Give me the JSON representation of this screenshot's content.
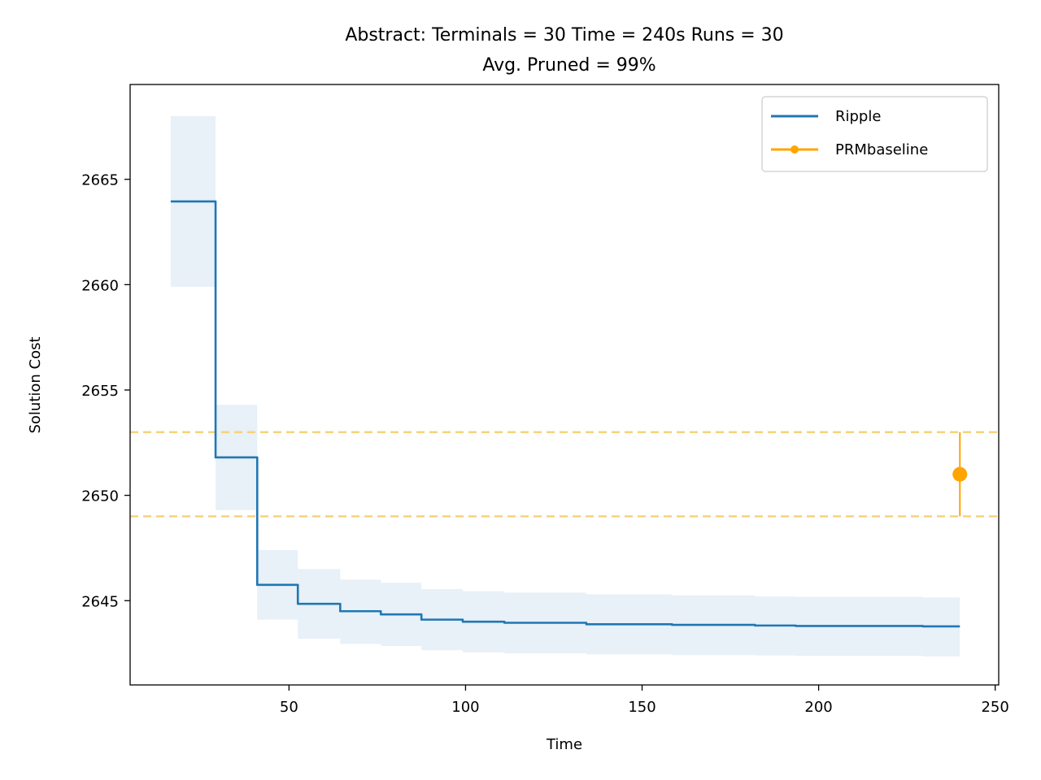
{
  "chart_data": {
    "type": "line",
    "title": "Abstract:  Terminals = 30  Time = 240s  Runs = 30",
    "subtitle": "Avg. Pruned = 99%",
    "xlabel": "Time",
    "ylabel": "Solution Cost",
    "xlim": [
      5,
      251
    ],
    "ylim": [
      2641,
      2669.5
    ],
    "xticks": [
      50,
      100,
      150,
      200,
      250
    ],
    "yticks": [
      2645,
      2650,
      2655,
      2660,
      2665
    ],
    "grid": false,
    "legend_position": "top-right",
    "series": [
      {
        "name": "Ripple",
        "color": "#1f77b4",
        "band_color": "#e8f0f8",
        "style": "step",
        "steps": [
          {
            "x0": 16.5,
            "x1": 29.2,
            "y": 2663.95,
            "lo": 2659.9,
            "hi": 2668.0
          },
          {
            "x0": 29.2,
            "x1": 41.0,
            "y": 2651.8,
            "lo": 2649.3,
            "hi": 2654.3
          },
          {
            "x0": 41.0,
            "x1": 52.5,
            "y": 2645.75,
            "lo": 2644.1,
            "hi": 2647.4
          },
          {
            "x0": 52.5,
            "x1": 64.5,
            "y": 2644.85,
            "lo": 2643.2,
            "hi": 2646.5
          },
          {
            "x0": 64.5,
            "x1": 76.0,
            "y": 2644.5,
            "lo": 2642.95,
            "hi": 2646.0
          },
          {
            "x0": 76.0,
            "x1": 87.5,
            "y": 2644.35,
            "lo": 2642.85,
            "hi": 2645.85
          },
          {
            "x0": 87.5,
            "x1": 99.2,
            "y": 2644.1,
            "lo": 2642.65,
            "hi": 2645.55
          },
          {
            "x0": 99.2,
            "x1": 111.0,
            "y": 2644.0,
            "lo": 2642.55,
            "hi": 2645.45
          },
          {
            "x0": 111.0,
            "x1": 134.2,
            "y": 2643.95,
            "lo": 2642.5,
            "hi": 2645.38
          },
          {
            "x0": 134.2,
            "x1": 158.5,
            "y": 2643.88,
            "lo": 2642.45,
            "hi": 2645.3
          },
          {
            "x0": 158.5,
            "x1": 182.0,
            "y": 2643.85,
            "lo": 2642.42,
            "hi": 2645.25
          },
          {
            "x0": 182.0,
            "x1": 193.5,
            "y": 2643.82,
            "lo": 2642.4,
            "hi": 2645.2
          },
          {
            "x0": 193.5,
            "x1": 229.5,
            "y": 2643.8,
            "lo": 2642.38,
            "hi": 2645.18
          },
          {
            "x0": 229.5,
            "x1": 240.0,
            "y": 2643.78,
            "lo": 2642.35,
            "hi": 2645.15
          }
        ]
      },
      {
        "name": "PRMbaseline",
        "color": "#ffa500",
        "style": "point-errorbar",
        "points": [
          {
            "x": 240,
            "y": 2651,
            "lo": 2649,
            "hi": 2653
          }
        ],
        "reference_lines": [
          2649,
          2653
        ],
        "reference_line_color": "#f7d27a"
      }
    ]
  }
}
